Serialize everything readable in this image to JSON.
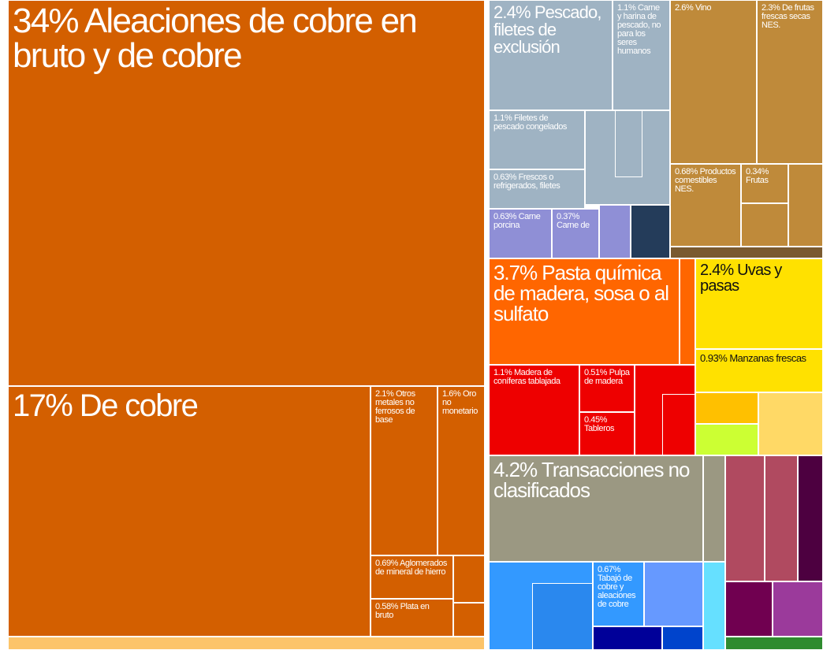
{
  "chart_data": {
    "type": "treemap",
    "items": [
      {
        "name": "Aleaciones de cobre en bruto y de cobre",
        "value": 34,
        "value_label": "34%",
        "color": "#d35f00"
      },
      {
        "name": "De cobre",
        "value": 17,
        "value_label": "17%",
        "color": "#d35f00"
      },
      {
        "name": "Otros metales no ferrosos de base",
        "value": 2.1,
        "value_label": "2.1%",
        "color": "#d35f00"
      },
      {
        "name": "Oro no monetario",
        "value": 1.6,
        "value_label": "1.6%",
        "color": "#d35f00"
      },
      {
        "name": "Aglomerados de mineral de hierro",
        "value": 0.69,
        "value_label": "0.69%",
        "color": "#d35f00"
      },
      {
        "name": "Plata en bruto",
        "value": 0.58,
        "value_label": "0.58%",
        "color": "#d35f00"
      },
      {
        "name": "Pescado, filetes de exclusión",
        "value": 2.4,
        "value_label": "2.4%",
        "color": "#9fb3c3"
      },
      {
        "name": "Carne y harina de pescado, no para los seres humanos",
        "value": 1.1,
        "value_label": "1.1%",
        "color": "#9fb3c3"
      },
      {
        "name": "Filetes de pescado congelados",
        "value": 1.1,
        "value_label": "1.1%",
        "color": "#9fb3c3"
      },
      {
        "name": "Frescos o refrigerados, filetes",
        "value": 0.63,
        "value_label": "0.63%",
        "color": "#9fb3c3"
      },
      {
        "name": "Carne porcina",
        "value": 0.63,
        "value_label": "0.63%",
        "color": "#8f8fd6"
      },
      {
        "name": "Carne de",
        "value": 0.37,
        "value_label": "0.37%",
        "color": "#8f8fd6"
      },
      {
        "name": "Vino",
        "value": 2.6,
        "value_label": "2.6%",
        "color": "#bf8a3a"
      },
      {
        "name": "De frutas frescas secas NES.",
        "value": 2.3,
        "value_label": "2.3%",
        "color": "#bf8a3a"
      },
      {
        "name": "Productos comestibles NES.",
        "value": 0.68,
        "value_label": "0.68%",
        "color": "#bf8a3a"
      },
      {
        "name": "Frutas",
        "value": 0.34,
        "value_label": "0.34%",
        "color": "#bf8a3a"
      },
      {
        "name": "Pasta química de madera, sosa o al sulfato",
        "value": 3.7,
        "value_label": "3.7%",
        "color": "#ff6600"
      },
      {
        "name": "Madera de coníferas tablajada",
        "value": 1.1,
        "value_label": "1.1%",
        "color": "#ee0000"
      },
      {
        "name": "Pulpa de madera",
        "value": 0.51,
        "value_label": "0.51%",
        "color": "#ee0000"
      },
      {
        "name": "Tableros",
        "value": 0.45,
        "value_label": "0.45%",
        "color": "#ee0000"
      },
      {
        "name": "Uvas y pasas",
        "value": 2.4,
        "value_label": "2.4%",
        "color": "#ffe100"
      },
      {
        "name": "Manzanas frescas",
        "value": 0.93,
        "value_label": "0.93%",
        "color": "#ffe100"
      },
      {
        "name": "Transacciones no clasificados",
        "value": 4.2,
        "value_label": "4.2%",
        "color": "#9b9882"
      },
      {
        "name": "Tabajó de cobre y aleaciones de cobre",
        "value": 0.67,
        "value_label": "0.67%",
        "color": "#3399ff"
      }
    ]
  }
}
